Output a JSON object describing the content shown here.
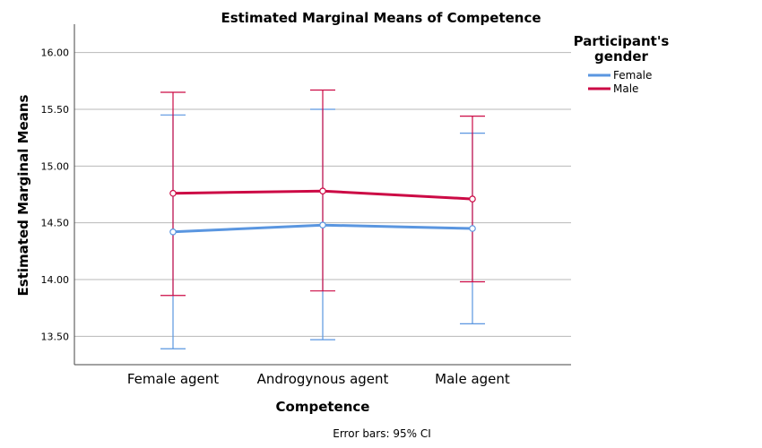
{
  "chart_data": {
    "type": "line",
    "title": "Estimated Marginal Means of Competence",
    "xlabel": "Competence",
    "ylabel": "Estimated Marginal Means",
    "categories": [
      "Female agent",
      "Androgynous agent",
      "Male agent"
    ],
    "ylim": [
      13.25,
      16.25
    ],
    "yticks": [
      "13.50",
      "14.00",
      "14.50",
      "15.00",
      "15.50",
      "16.00"
    ],
    "grid": true,
    "legend": {
      "title_line1": "Participant's",
      "title_line2": "gender",
      "placement": "right"
    },
    "series": [
      {
        "name": "Female",
        "color": "#5a96e0",
        "values": [
          14.42,
          14.48,
          14.45
        ],
        "ci_low": [
          13.39,
          13.47,
          13.61
        ],
        "ci_high": [
          15.45,
          15.5,
          15.29
        ]
      },
      {
        "name": "Male",
        "color": "#cc0a45",
        "values": [
          14.76,
          14.78,
          14.71
        ],
        "ci_low": [
          13.86,
          13.9,
          13.98
        ],
        "ci_high": [
          15.65,
          15.67,
          15.44
        ]
      }
    ],
    "footnote": "Error bars: 95% CI"
  }
}
